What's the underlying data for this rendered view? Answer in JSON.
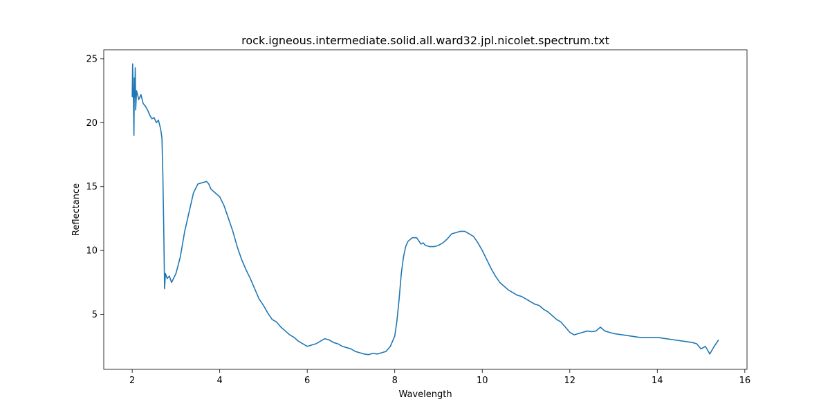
{
  "chart_data": {
    "type": "line",
    "title": "rock.igneous.intermediate.solid.all.ward32.jpl.nicolet.spectrum.txt",
    "xlabel": "Wavelength",
    "ylabel": "Reflectance",
    "xlim": [
      1.35,
      16.05
    ],
    "ylim": [
      0.7,
      25.7
    ],
    "xticks": [
      2,
      4,
      6,
      8,
      10,
      12,
      14,
      16
    ],
    "yticks": [
      5,
      10,
      15,
      20,
      25
    ],
    "grid": false,
    "line_color": "#1f77b4",
    "series": [
      {
        "x": [
          2.0,
          2.01,
          2.02,
          2.03,
          2.04,
          2.05,
          2.06,
          2.07,
          2.08,
          2.1,
          2.15,
          2.2,
          2.25,
          2.3,
          2.35,
          2.4,
          2.45,
          2.5,
          2.55,
          2.6,
          2.65,
          2.68,
          2.7,
          2.72,
          2.74,
          2.76,
          2.8,
          2.85,
          2.9,
          3.0,
          3.1,
          3.2,
          3.3,
          3.4,
          3.5,
          3.6,
          3.7,
          3.75,
          3.8,
          3.9,
          4.0,
          4.1,
          4.2,
          4.3,
          4.4,
          4.5,
          4.6,
          4.7,
          4.8,
          4.9,
          5.0,
          5.1,
          5.2,
          5.3,
          5.4,
          5.5,
          5.6,
          5.7,
          5.8,
          5.9,
          6.0,
          6.1,
          6.2,
          6.3,
          6.4,
          6.5,
          6.6,
          6.7,
          6.8,
          6.9,
          7.0,
          7.1,
          7.2,
          7.3,
          7.4,
          7.5,
          7.6,
          7.7,
          7.8,
          7.9,
          8.0,
          8.05,
          8.1,
          8.15,
          8.2,
          8.25,
          8.3,
          8.4,
          8.5,
          8.6,
          8.65,
          8.7,
          8.8,
          8.9,
          9.0,
          9.1,
          9.2,
          9.3,
          9.4,
          9.5,
          9.6,
          9.7,
          9.8,
          9.9,
          10.0,
          10.1,
          10.2,
          10.3,
          10.4,
          10.5,
          10.6,
          10.7,
          10.8,
          10.9,
          11.0,
          11.1,
          11.2,
          11.3,
          11.4,
          11.5,
          11.6,
          11.7,
          11.8,
          11.9,
          12.0,
          12.1,
          12.2,
          12.3,
          12.4,
          12.5,
          12.6,
          12.7,
          12.8,
          12.9,
          13.0,
          13.2,
          13.4,
          13.6,
          13.8,
          14.0,
          14.2,
          14.4,
          14.6,
          14.8,
          14.9,
          15.0,
          15.1,
          15.2,
          15.3,
          15.4
        ],
        "y": [
          22.0,
          24.6,
          23.0,
          21.5,
          19.0,
          23.5,
          22.0,
          24.3,
          21.0,
          22.5,
          21.8,
          22.2,
          21.5,
          21.3,
          21.0,
          20.6,
          20.3,
          20.4,
          20.0,
          20.2,
          19.5,
          18.8,
          16.0,
          12.0,
          7.0,
          8.2,
          7.8,
          8.0,
          7.5,
          8.2,
          9.5,
          11.5,
          13.0,
          14.5,
          15.2,
          15.3,
          15.4,
          15.2,
          14.8,
          14.5,
          14.2,
          13.5,
          12.5,
          11.5,
          10.3,
          9.3,
          8.5,
          7.8,
          7.0,
          6.2,
          5.7,
          5.1,
          4.6,
          4.4,
          4.0,
          3.7,
          3.4,
          3.2,
          2.9,
          2.7,
          2.5,
          2.6,
          2.7,
          2.9,
          3.1,
          3.0,
          2.8,
          2.7,
          2.5,
          2.4,
          2.3,
          2.1,
          2.0,
          1.9,
          1.85,
          1.95,
          1.9,
          2.0,
          2.1,
          2.5,
          3.3,
          4.5,
          6.2,
          8.2,
          9.5,
          10.3,
          10.7,
          11.0,
          11.0,
          10.5,
          10.6,
          10.4,
          10.3,
          10.3,
          10.4,
          10.6,
          10.9,
          11.3,
          11.4,
          11.5,
          11.5,
          11.3,
          11.1,
          10.6,
          10.0,
          9.3,
          8.6,
          8.0,
          7.5,
          7.2,
          6.9,
          6.7,
          6.5,
          6.4,
          6.2,
          6.0,
          5.8,
          5.7,
          5.4,
          5.2,
          4.9,
          4.6,
          4.4,
          4.0,
          3.6,
          3.4,
          3.5,
          3.6,
          3.7,
          3.65,
          3.7,
          4.0,
          3.7,
          3.6,
          3.5,
          3.4,
          3.3,
          3.2,
          3.2,
          3.2,
          3.1,
          3.0,
          2.9,
          2.8,
          2.7,
          2.3,
          2.5,
          1.9,
          2.5,
          3.0
        ]
      }
    ]
  }
}
